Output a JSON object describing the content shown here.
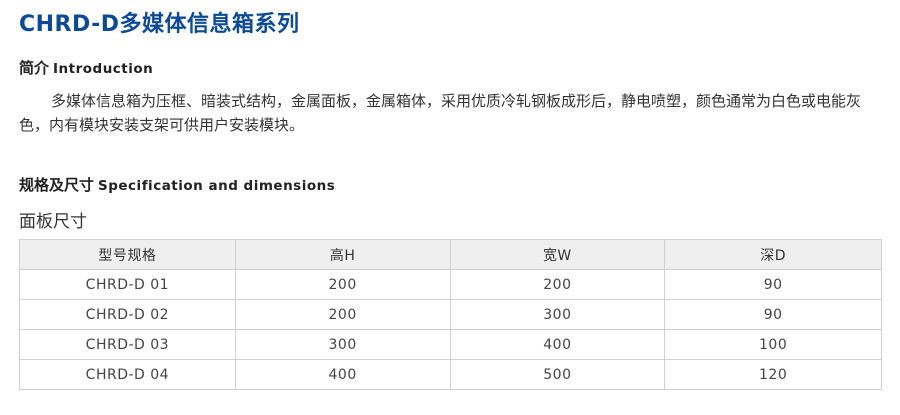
{
  "title": "CHRD-D多媒体信息箱系列",
  "intro": {
    "heading_cn": "简介",
    "heading_en": "Introduction",
    "text": "多媒体信息箱为压框、暗装式结构，金属面板，金属箱体，采用优质冷轧钢板成形后，静电喷塑，颜色通常为白色或电能灰色，内有模块安装支架可供用户安装模块。"
  },
  "spec": {
    "heading_cn": "规格及尺寸",
    "heading_en": "Specification and dimensions",
    "subheading": "面板尺寸",
    "table": {
      "headers": [
        "型号规格",
        "高H",
        "宽W",
        "深D"
      ],
      "rows": [
        [
          "CHRD-D 01",
          "200",
          "200",
          "90"
        ],
        [
          "CHRD-D 02",
          "200",
          "300",
          "90"
        ],
        [
          "CHRD-D 03",
          "300",
          "400",
          "100"
        ],
        [
          "CHRD-D 04",
          "400",
          "500",
          "120"
        ]
      ]
    }
  },
  "colors": {
    "title": "#0d4a96",
    "header_bg": "#efefef",
    "border": "#cfcfcf"
  }
}
